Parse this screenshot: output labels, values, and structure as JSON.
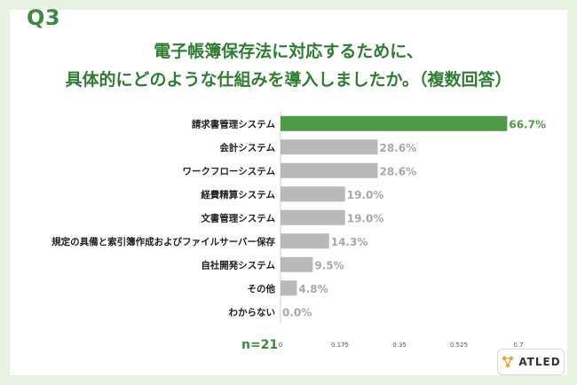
{
  "header": {
    "q_label": "Q3",
    "title_line1": "電子帳簿保存法に対応するために、",
    "title_line2": "具体的にどのような仕組みを導入しましたか。（複数回答）"
  },
  "footer": {
    "n_label": "n=21",
    "brand": "ATLED"
  },
  "colors": {
    "background": "#e8f2e1",
    "highlight_bar": "#4e9a45",
    "default_bar": "#b9b9b9",
    "highlight_text": "#4e9a45",
    "default_text": "#a8a8a8"
  },
  "chart_data": {
    "type": "bar",
    "orientation": "horizontal",
    "categories": [
      "請求書管理システム",
      "会計システム",
      "ワークフローシステム",
      "経費精算システム",
      "文書管理システム",
      "規定の具備と索引簿作成およびファイルサーバー保存",
      "自社開発システム",
      "その他",
      "わからない"
    ],
    "values": [
      0.667,
      0.286,
      0.286,
      0.19,
      0.19,
      0.143,
      0.095,
      0.048,
      0.0
    ],
    "data_labels": [
      "66.7%",
      "28.6%",
      "28.6%",
      "19.0%",
      "19.0%",
      "14.3%",
      "9.5%",
      "4.8%",
      "0.0%"
    ],
    "highlight_index": 0,
    "xlim": [
      0,
      0.7
    ],
    "x_ticks": [
      "0",
      "0.175",
      "0.35",
      "0.525",
      "0.7"
    ]
  }
}
